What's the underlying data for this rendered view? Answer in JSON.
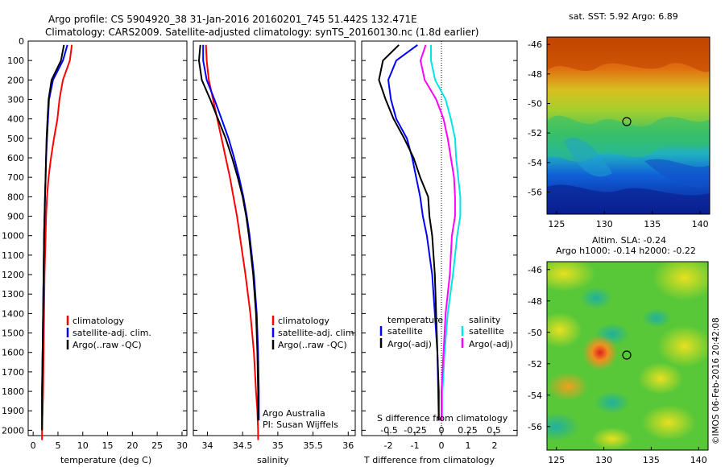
{
  "header": {
    "line1": "Argo profile: CS 5904920_38 31-Jan-2016 20160201_745 51.442S 132.471E",
    "line2": "Climatology: CARS2009. Satellite-adjusted climatology: synTS_20160130.nc (1.8d earlier)"
  },
  "depth_ticks": [
    "0",
    "100",
    "200",
    "300",
    "400",
    "500",
    "600",
    "700",
    "800",
    "900",
    "1000",
    "1100",
    "1200",
    "1300",
    "1400",
    "1500",
    "1600",
    "1700",
    "1800",
    "1900",
    "2000"
  ],
  "temperature_panel": {
    "xlabel": "temperature (deg C)",
    "xticks": [
      "0",
      "5",
      "10",
      "15",
      "20",
      "25",
      "30"
    ],
    "legend": [
      "climatology",
      "satellite-adj. clim.",
      "Argo(..raw -QC)"
    ]
  },
  "salinity_panel": {
    "xlabel": "salinity",
    "xticks": [
      "34",
      "34.5",
      "35",
      "35.5",
      "36"
    ],
    "legend": [
      "climatology",
      "satellite-adj. clim.",
      "Argo(..raw -QC)"
    ],
    "credit_line1": "Argo Australia",
    "credit_line2": "PI: Susan Wijffels"
  },
  "difference_panel": {
    "xlabel": "T difference from climatology",
    "top_label": "S difference from climatology",
    "t_ticks": [
      "-2",
      "-1",
      "0",
      "1",
      "2"
    ],
    "s_ticks": [
      "-0.5",
      "-0.25",
      "0",
      "0.25",
      "0.5"
    ],
    "legend_temp_title": "temperature",
    "legend_temp": [
      "satellite",
      "Argo(-adj)"
    ],
    "legend_sal_title": "salinity",
    "legend_sal": [
      "satellite",
      "Argo(-adj)"
    ]
  },
  "sst_map": {
    "title": "sat. SST: 5.92  Argo: 6.89",
    "lat_ticks": [
      "-46",
      "-48",
      "-50",
      "-52",
      "-54",
      "-56"
    ],
    "lon_ticks": [
      "125",
      "130",
      "135",
      "140"
    ]
  },
  "sla_map": {
    "title1": "Altim. SLA: -0.24",
    "title2": "Argo h1000: -0.14 h2000: -0.22",
    "lat_ticks": [
      "-46",
      "-48",
      "-50",
      "-52",
      "-54",
      "-56"
    ],
    "lon_ticks": [
      "125",
      "130",
      "135",
      "140"
    ]
  },
  "watermark": "©IMOS 06-Feb-2016 20:42:08",
  "colors": {
    "climatology": "#ff0000",
    "satellite": "#0000ff",
    "argo": "#000000",
    "sal_satellite": "#00e5e5",
    "sal_argo": "#ff00ff"
  },
  "chart_data": [
    {
      "type": "line",
      "xlabel": "temperature (deg C)",
      "ylabel": "",
      "xlim": [
        -1,
        31
      ],
      "ylim": [
        2050,
        0
      ],
      "series": [
        {
          "name": "climatology",
          "x": [
            7.8,
            7.4,
            6.0,
            5.3,
            4.9,
            4.2,
            3.6,
            3.1,
            2.8,
            2.6,
            2.5,
            2.3,
            2.2,
            2.1,
            2.0,
            1.9,
            1.8,
            1.8
          ],
          "y": [
            20,
            100,
            200,
            300,
            400,
            500,
            600,
            700,
            800,
            900,
            1000,
            1200,
            1400,
            1600,
            1800,
            1900,
            2000,
            2050
          ]
        },
        {
          "name": "satellite-adj. clim.",
          "x": [
            6.9,
            6.0,
            4.0,
            3.2,
            3.0,
            2.8,
            2.6,
            2.5,
            2.4,
            2.3,
            2.2,
            2.1,
            2.0,
            1.9,
            1.8,
            1.8
          ],
          "y": [
            20,
            100,
            200,
            300,
            400,
            500,
            600,
            700,
            800,
            900,
            1000,
            1200,
            1400,
            1600,
            1800,
            2000
          ]
        },
        {
          "name": "Argo(..raw -QC)",
          "x": [
            6.2,
            5.6,
            3.7,
            3.1,
            2.9,
            2.7,
            2.6,
            2.5,
            2.4,
            2.3,
            2.2,
            2.1,
            2.0,
            1.9,
            1.8,
            1.8
          ],
          "y": [
            20,
            100,
            200,
            300,
            400,
            500,
            600,
            700,
            800,
            900,
            1000,
            1200,
            1400,
            1600,
            1800,
            2000
          ]
        }
      ]
    },
    {
      "type": "line",
      "xlabel": "salinity",
      "ylabel": "",
      "xlim": [
        33.8,
        36.1
      ],
      "ylim": [
        2050,
        0
      ],
      "series": [
        {
          "name": "climatology",
          "x": [
            33.98,
            33.99,
            34.02,
            34.08,
            34.14,
            34.2,
            34.26,
            34.32,
            34.37,
            34.42,
            34.46,
            34.54,
            34.61,
            34.66,
            34.69,
            34.71,
            34.72,
            34.72
          ],
          "y": [
            20,
            100,
            200,
            300,
            400,
            500,
            600,
            700,
            800,
            900,
            1000,
            1200,
            1400,
            1600,
            1800,
            1900,
            2000,
            2050
          ]
        },
        {
          "name": "satellite-adj. clim.",
          "x": [
            33.94,
            33.94,
            33.99,
            34.1,
            34.2,
            34.3,
            34.38,
            34.45,
            34.51,
            34.56,
            34.6,
            34.66,
            34.7,
            34.72,
            34.73,
            34.73
          ],
          "y": [
            20,
            100,
            200,
            300,
            400,
            500,
            600,
            700,
            800,
            900,
            1000,
            1200,
            1400,
            1600,
            1800,
            1950
          ]
        },
        {
          "name": "Argo(..raw -QC)",
          "x": [
            33.9,
            33.88,
            33.92,
            34.04,
            34.15,
            34.26,
            34.35,
            34.43,
            34.5,
            34.55,
            34.59,
            34.65,
            34.69,
            34.71,
            34.72,
            34.72
          ],
          "y": [
            20,
            100,
            200,
            300,
            400,
            500,
            600,
            700,
            800,
            900,
            1000,
            1200,
            1400,
            1600,
            1800,
            1950
          ]
        }
      ]
    },
    {
      "type": "line",
      "xlabel": "T difference from climatology",
      "ylabel": "",
      "xlim": [
        -2.7,
        2.7
      ],
      "ylim": [
        2050,
        0
      ],
      "series": [
        {
          "name": "temperature satellite",
          "x": [
            -0.9,
            -1.7,
            -2.0,
            -1.9,
            -1.7,
            -1.3,
            -1.1,
            -0.95,
            -0.8,
            -0.7,
            -0.55,
            -0.35,
            -0.25,
            -0.15,
            -0.12,
            -0.1
          ],
          "y": [
            20,
            100,
            200,
            300,
            400,
            500,
            600,
            700,
            800,
            900,
            1000,
            1200,
            1400,
            1600,
            1800,
            1950
          ]
        },
        {
          "name": "temperature Argo(-adj)",
          "x": [
            -1.6,
            -2.2,
            -2.35,
            -2.1,
            -1.8,
            -1.4,
            -1.05,
            -0.8,
            -0.5,
            -0.45,
            -0.35,
            -0.25,
            -0.2,
            -0.15,
            -0.1,
            -0.1
          ],
          "y": [
            20,
            100,
            200,
            300,
            400,
            500,
            600,
            700,
            800,
            900,
            1000,
            1200,
            1400,
            1600,
            1800,
            1950
          ]
        },
        {
          "name": "salinity satellite",
          "x": [
            -0.1,
            -0.1,
            -0.06,
            0.04,
            0.09,
            0.13,
            0.14,
            0.16,
            0.18,
            0.18,
            0.15,
            0.11,
            0.06,
            0.03,
            0.01,
            0.01
          ],
          "y": [
            20,
            100,
            200,
            300,
            400,
            500,
            600,
            700,
            800,
            900,
            1000,
            1200,
            1400,
            1600,
            1800,
            1950
          ]
        },
        {
          "name": "salinity Argo(-adj)",
          "x": [
            -0.15,
            -0.2,
            -0.16,
            -0.05,
            0.02,
            0.06,
            0.09,
            0.12,
            0.13,
            0.13,
            0.1,
            0.08,
            0.04,
            0.02,
            0.0,
            0.0
          ],
          "y": [
            20,
            100,
            200,
            300,
            400,
            500,
            600,
            700,
            800,
            900,
            1000,
            1200,
            1400,
            1600,
            1800,
            1950
          ]
        }
      ]
    }
  ]
}
